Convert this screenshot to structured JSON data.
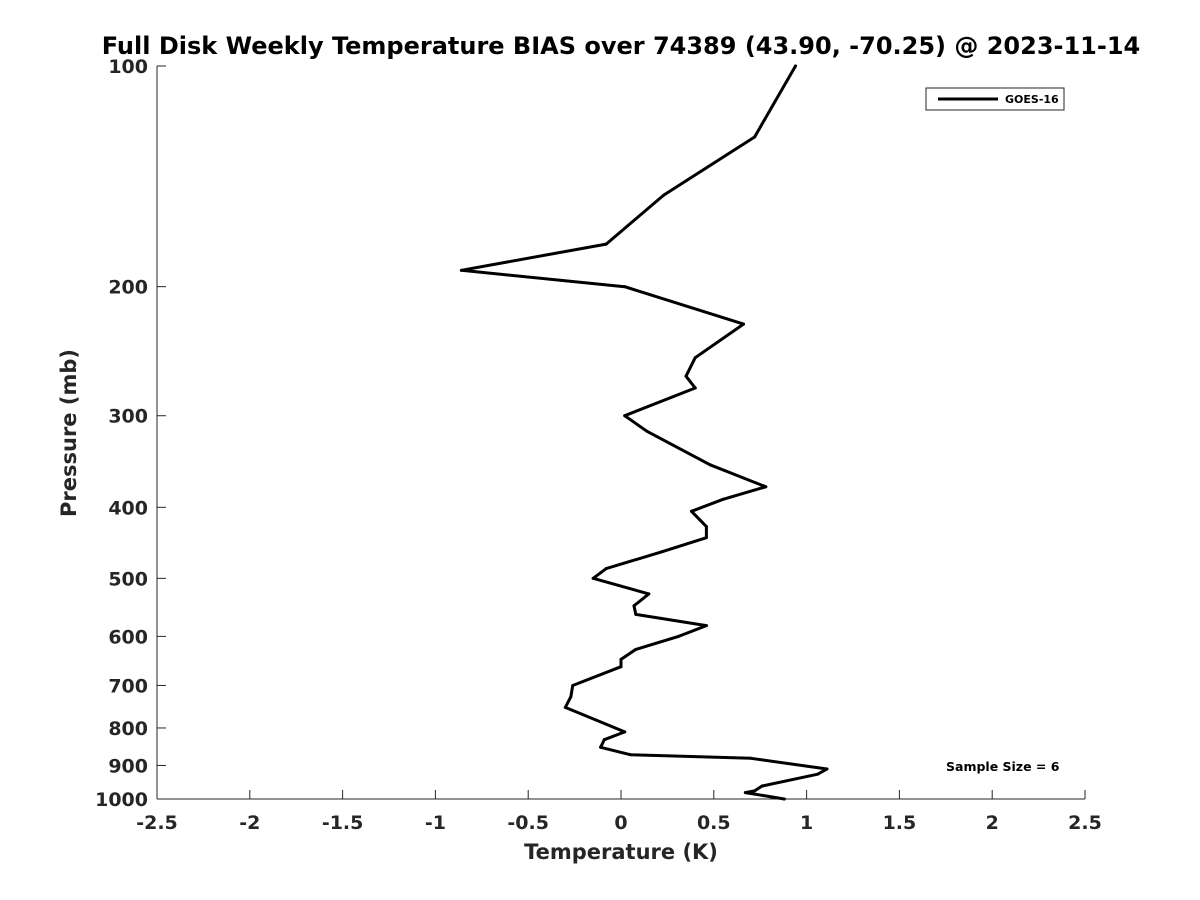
{
  "chart_data": {
    "type": "line",
    "title": "Full Disk Weekly Temperature BIAS over 74389 (43.90, -70.25) @ 2023-11-14",
    "xlabel": "Temperature (K)",
    "ylabel": "Pressure (mb)",
    "xlim": [
      -2.5,
      2.5
    ],
    "ylim": [
      100,
      1000
    ],
    "y_scale": "log",
    "y_reversed": true,
    "x_ticks": [
      -2.5,
      -2,
      -1.5,
      -1,
      -0.5,
      0,
      0.5,
      1,
      1.5,
      2,
      2.5
    ],
    "x_tick_labels": [
      "-2.5",
      "-2",
      "-1.5",
      "-1",
      "-0.5",
      "0",
      "0.5",
      "1",
      "1.5",
      "2",
      "2.5"
    ],
    "y_ticks": [
      100,
      200,
      300,
      400,
      500,
      600,
      700,
      800,
      900,
      1000
    ],
    "y_tick_labels": [
      "100",
      "200",
      "300",
      "400",
      "500",
      "600",
      "700",
      "800",
      "900",
      "1000"
    ],
    "grid": false,
    "legend_position": "top-right",
    "line_color": "#000000",
    "series": [
      {
        "name": "GOES-16",
        "points": [
          {
            "x": 0.94,
            "y": 100
          },
          {
            "x": 0.72,
            "y": 125
          },
          {
            "x": 0.23,
            "y": 150
          },
          {
            "x": -0.08,
            "y": 175
          },
          {
            "x": -0.86,
            "y": 190
          },
          {
            "x": 0.02,
            "y": 200
          },
          {
            "x": 0.66,
            "y": 225
          },
          {
            "x": 0.4,
            "y": 250
          },
          {
            "x": 0.35,
            "y": 265
          },
          {
            "x": 0.4,
            "y": 275
          },
          {
            "x": 0.02,
            "y": 300
          },
          {
            "x": 0.14,
            "y": 315
          },
          {
            "x": 0.48,
            "y": 350
          },
          {
            "x": 0.78,
            "y": 375
          },
          {
            "x": 0.55,
            "y": 390
          },
          {
            "x": 0.38,
            "y": 405
          },
          {
            "x": 0.46,
            "y": 425
          },
          {
            "x": 0.46,
            "y": 440
          },
          {
            "x": 0.22,
            "y": 460
          },
          {
            "x": -0.08,
            "y": 485
          },
          {
            "x": -0.15,
            "y": 500
          },
          {
            "x": 0.15,
            "y": 525
          },
          {
            "x": 0.07,
            "y": 545
          },
          {
            "x": 0.08,
            "y": 560
          },
          {
            "x": 0.46,
            "y": 580
          },
          {
            "x": 0.31,
            "y": 600
          },
          {
            "x": 0.08,
            "y": 625
          },
          {
            "x": 0.0,
            "y": 645
          },
          {
            "x": 0.0,
            "y": 660
          },
          {
            "x": -0.26,
            "y": 700
          },
          {
            "x": -0.27,
            "y": 725
          },
          {
            "x": -0.3,
            "y": 750
          },
          {
            "x": 0.02,
            "y": 810
          },
          {
            "x": -0.09,
            "y": 830
          },
          {
            "x": -0.11,
            "y": 850
          },
          {
            "x": 0.05,
            "y": 870
          },
          {
            "x": 0.7,
            "y": 880
          },
          {
            "x": 1.11,
            "y": 910
          },
          {
            "x": 1.06,
            "y": 925
          },
          {
            "x": 0.76,
            "y": 960
          },
          {
            "x": 0.72,
            "y": 975
          },
          {
            "x": 0.67,
            "y": 980
          },
          {
            "x": 0.88,
            "y": 1000
          }
        ]
      }
    ],
    "annotation": "Sample Size = 6"
  }
}
